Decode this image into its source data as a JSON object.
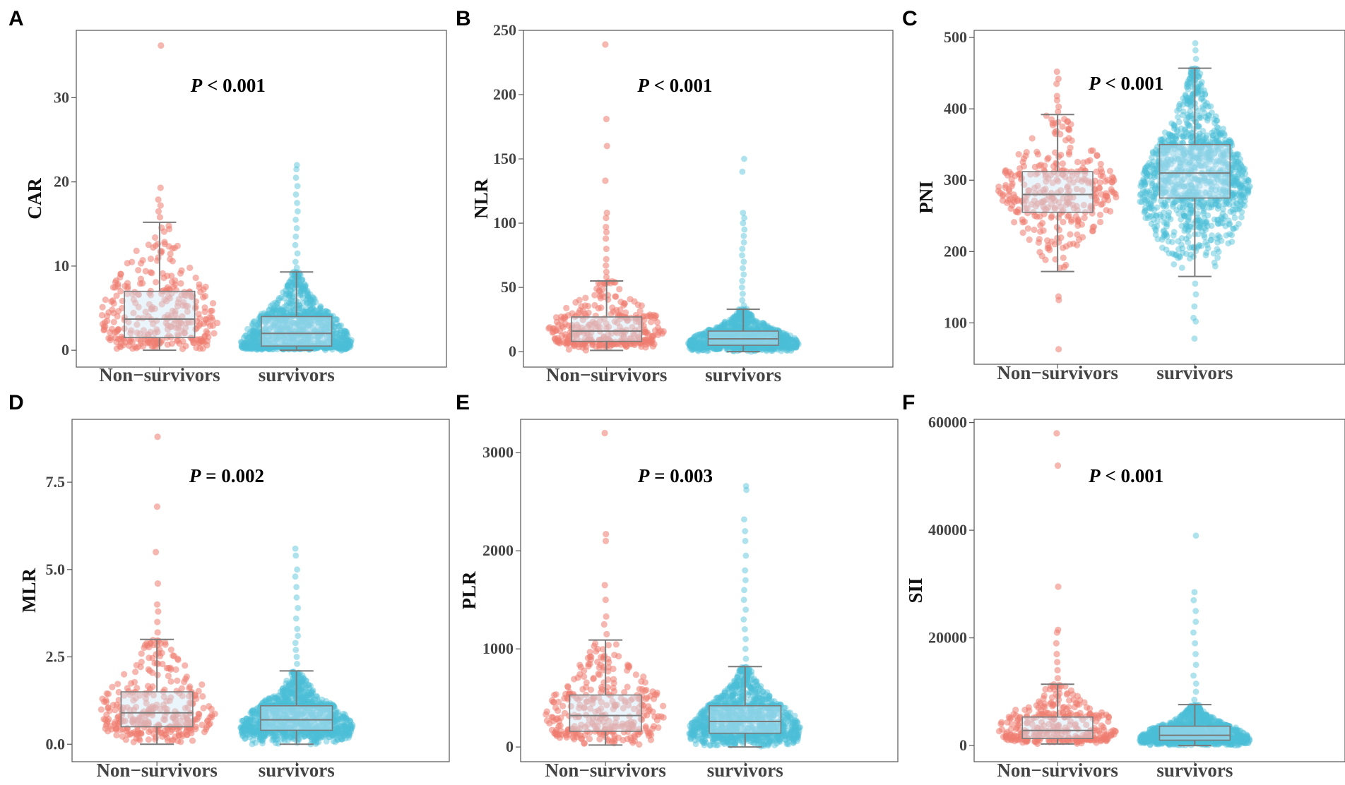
{
  "chart_data": [
    {
      "panel": "A",
      "type": "box",
      "ylabel": "CAR",
      "categories": [
        "Non−survivors",
        "survivors"
      ],
      "yticks": [
        "0",
        "10",
        "20",
        "30"
      ],
      "ytick_values": [
        0,
        10,
        20,
        30
      ],
      "ylim": [
        -2,
        38
      ],
      "p_label": {
        "letter": "P",
        "op": "<",
        "value": "0.001"
      },
      "series": [
        {
          "name": "Non−survivors",
          "whisker_low": 0,
          "q1": 1.5,
          "median": 3.7,
          "q3": 7.0,
          "whisker_high": 15.2,
          "outliers": [
            15.8,
            16.5,
            17.2,
            17.9,
            19.3,
            36.2
          ]
        },
        {
          "name": "survivors",
          "whisker_low": 0,
          "q1": 0.5,
          "median": 2.0,
          "q3": 4.0,
          "whisker_high": 9.3,
          "outliers": [
            9.8,
            10.5,
            11.5,
            12.5,
            13.5,
            14.5,
            15.5,
            16.5,
            17.5,
            18.5,
            19.5,
            20.5,
            21.5,
            22.0
          ]
        }
      ]
    },
    {
      "panel": "B",
      "type": "box",
      "ylabel": "NLR",
      "categories": [
        "Non−survivors",
        "survivors"
      ],
      "yticks": [
        "0",
        "50",
        "100",
        "150",
        "200",
        "250"
      ],
      "ytick_values": [
        0,
        50,
        100,
        150,
        200,
        250
      ],
      "ylim": [
        -12,
        250
      ],
      "p_label": {
        "letter": "P",
        "op": "<",
        "value": "0.001"
      },
      "series": [
        {
          "name": "Non−survivors",
          "whisker_low": 1,
          "q1": 8,
          "median": 16,
          "q3": 27,
          "whisker_high": 55,
          "outliers": [
            58,
            62,
            67,
            72,
            80,
            88,
            93,
            97,
            104,
            108,
            133,
            160,
            181,
            239
          ]
        },
        {
          "name": "survivors",
          "whisker_low": 0,
          "q1": 5,
          "median": 10,
          "q3": 16,
          "whisker_high": 33,
          "outliers": [
            36,
            40,
            45,
            50,
            55,
            60,
            65,
            70,
            75,
            80,
            85,
            90,
            95,
            100,
            104,
            108,
            140,
            150
          ]
        }
      ]
    },
    {
      "panel": "C",
      "type": "box",
      "ylabel": "PNI",
      "categories": [
        "Non−survivors",
        "survivors"
      ],
      "yticks": [
        "100",
        "200",
        "300",
        "400",
        "500"
      ],
      "ytick_values": [
        100,
        200,
        300,
        400,
        500
      ],
      "ylim": [
        42,
        510
      ],
      "p_label": {
        "letter": "P",
        "op": "<",
        "value": "0.001"
      },
      "series": [
        {
          "name": "Non−survivors",
          "whisker_low": 172,
          "q1": 255,
          "median": 280,
          "q3": 312,
          "whisker_high": 392,
          "outliers": [
            132,
            137,
            396,
            403,
            412,
            418,
            435,
            442,
            452,
            63
          ]
        },
        {
          "name": "survivors",
          "whisker_low": 165,
          "q1": 275,
          "median": 310,
          "q3": 350,
          "whisker_high": 457,
          "outliers": [
            78,
            102,
            107,
            123,
            140,
            155,
            470,
            482,
            492
          ]
        }
      ]
    },
    {
      "panel": "D",
      "type": "box",
      "ylabel": "MLR",
      "categories": [
        "Non−survivors",
        "survivors"
      ],
      "yticks": [
        "0.0",
        "2.5",
        "5.0",
        "7.5"
      ],
      "ytick_values": [
        0,
        2.5,
        5,
        7.5
      ],
      "ylim": [
        -0.5,
        9.3
      ],
      "p_label": {
        "letter": "P",
        "op": "=",
        "value": "0.002"
      },
      "series": [
        {
          "name": "Non−survivors",
          "whisker_low": 0,
          "q1": 0.5,
          "median": 0.9,
          "q3": 1.5,
          "whisker_high": 3.0,
          "outliers": [
            3.2,
            3.5,
            3.8,
            4.0,
            4.6,
            5.5,
            6.8,
            8.8
          ]
        },
        {
          "name": "survivors",
          "whisker_low": 0,
          "q1": 0.4,
          "median": 0.7,
          "q3": 1.1,
          "whisker_high": 2.1,
          "outliers": [
            2.3,
            2.5,
            2.7,
            2.9,
            3.1,
            3.3,
            3.6,
            3.9,
            4.2,
            4.5,
            4.8,
            5.0,
            5.4,
            5.6
          ]
        }
      ]
    },
    {
      "panel": "E",
      "type": "box",
      "ylabel": "PLR",
      "categories": [
        "Non−survivors",
        "survivors"
      ],
      "yticks": [
        "0",
        "1000",
        "2000",
        "3000"
      ],
      "ytick_values": [
        0,
        1000,
        2000,
        3000
      ],
      "ylim": [
        -150,
        3340
      ],
      "p_label": {
        "letter": "P",
        "op": "=",
        "value": "0.003"
      },
      "series": [
        {
          "name": "Non−survivors",
          "whisker_low": 20,
          "q1": 160,
          "median": 320,
          "q3": 530,
          "whisker_high": 1090,
          "outliers": [
            1150,
            1250,
            1330,
            1500,
            1650,
            2100,
            2170,
            3200
          ]
        },
        {
          "name": "survivors",
          "whisker_low": 0,
          "q1": 140,
          "median": 260,
          "q3": 420,
          "whisker_high": 820,
          "outliers": [
            900,
            1000,
            1100,
            1200,
            1300,
            1400,
            1500,
            1600,
            1700,
            1800,
            1950,
            2100,
            2200,
            2320,
            2620,
            2660
          ]
        }
      ]
    },
    {
      "panel": "F",
      "type": "box",
      "ylabel": "SII",
      "categories": [
        "Non−survivors",
        "survivors"
      ],
      "yticks": [
        "0",
        "20000",
        "40000",
        "60000"
      ],
      "ytick_values": [
        0,
        20000,
        40000,
        60000
      ],
      "ylim": [
        -3000,
        60600
      ],
      "p_label": {
        "letter": "P",
        "op": "<",
        "value": "0.001"
      },
      "series": [
        {
          "name": "Non−survivors",
          "whisker_low": 300,
          "q1": 1300,
          "median": 2800,
          "q3": 5300,
          "whisker_high": 11400,
          "outliers": [
            12500,
            14000,
            15500,
            17000,
            19000,
            21000,
            21500,
            29500,
            52000,
            58000
          ]
        },
        {
          "name": "survivors",
          "whisker_low": 0,
          "q1": 1000,
          "median": 1900,
          "q3": 3600,
          "whisker_high": 7600,
          "outliers": [
            8500,
            10000,
            11500,
            13000,
            15000,
            17000,
            19000,
            21000,
            23000,
            25000,
            27000,
            28500,
            39000
          ]
        }
      ]
    }
  ],
  "colors": {
    "non_survivors_point": "#ef7b70",
    "survivors_point": "#4cbfd8",
    "box_fill": "#cfe6f7",
    "box_stroke": "#7a7a7a",
    "axis": "#555555",
    "frame": "#555555"
  }
}
